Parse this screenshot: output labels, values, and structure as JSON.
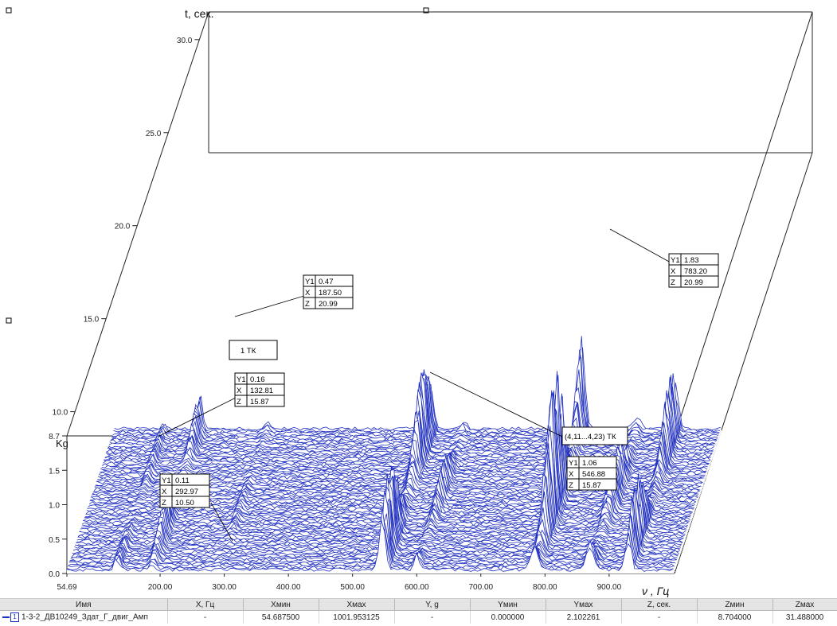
{
  "chart_data": {
    "type": "waterfall-3d",
    "x_axis": {
      "label": "ν , Гц",
      "range": [
        54.69,
        1001.953125
      ],
      "ticks": [
        "54.69",
        "200.00",
        "300.00",
        "400.00",
        "500.00",
        "600.00",
        "700.00",
        "800.00",
        "900.00"
      ]
    },
    "y_axis": {
      "label": "Kg",
      "range": [
        0.0,
        2.102261
      ],
      "ticks": [
        "0.0",
        "0.5",
        "1.0",
        "1.5"
      ]
    },
    "z_axis": {
      "label": "t, сек.",
      "range": [
        8.7,
        31.488
      ],
      "ticks": [
        "8.7",
        "10.0",
        "15.0",
        "20.0",
        "25.0",
        "30.0"
      ]
    },
    "line_color": "#1f2fbf",
    "markers": [
      {
        "y1": "0.47",
        "x": "187.50",
        "z": "20.99"
      },
      {
        "y1": "1.83",
        "x": "783.20",
        "z": "20.99"
      },
      {
        "y1": "0.16",
        "x": "132.81",
        "z": "15.87"
      },
      {
        "y1": "1.06",
        "x": "546.88",
        "z": "15.87"
      },
      {
        "y1": "0.11",
        "x": "292.97",
        "z": "10.50"
      }
    ],
    "marker_labels": {
      "y1": "Y1",
      "x": "X",
      "z": "Z"
    },
    "annotations": [
      "1 ТК",
      "(4,11...4,23) ТК"
    ]
  },
  "legend": {
    "headers": [
      "Имя",
      "X, Гц",
      "Xмин",
      "Xмах",
      "Y, g",
      "Yмин",
      "Yмах",
      "Z, сек.",
      "Zмин",
      "Zмах"
    ],
    "row": {
      "index": "1",
      "name": "1-3-2_ДВ10249_Здат_Г_двиг_Амп",
      "x": "-",
      "xmin": "54.687500",
      "xmax": "1001.953125",
      "y": "-",
      "ymin": "0.000000",
      "ymax": "2.102261",
      "z": "-",
      "zmin": "8.704000",
      "zmax": "31.488000"
    }
  }
}
